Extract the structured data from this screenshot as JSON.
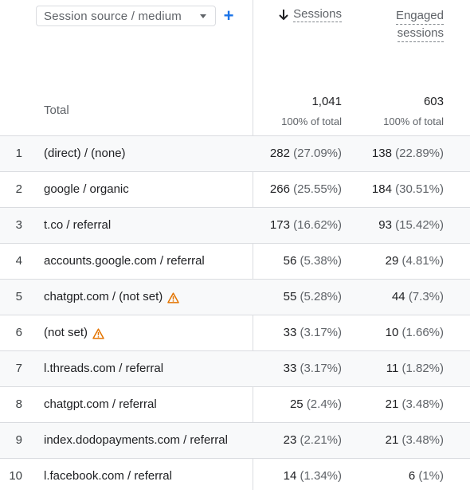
{
  "header": {
    "dimension_selector": "Session source / medium",
    "add_label": "+",
    "sessions_label": "Sessions",
    "engaged_label_line1": "Engaged",
    "engaged_label_line2": "sessions"
  },
  "totals": {
    "label": "Total",
    "sessions": "1,041",
    "sessions_pct": "100% of total",
    "engaged": "603",
    "engaged_pct": "100% of total"
  },
  "rows": [
    {
      "idx": "1",
      "dim": "(direct) / (none)",
      "warn": false,
      "s": "282",
      "sp": "(27.09%)",
      "e": "138",
      "ep": "(22.89%)"
    },
    {
      "idx": "2",
      "dim": "google / organic",
      "warn": false,
      "s": "266",
      "sp": "(25.55%)",
      "e": "184",
      "ep": "(30.51%)"
    },
    {
      "idx": "3",
      "dim": "t.co / referral",
      "warn": false,
      "s": "173",
      "sp": "(16.62%)",
      "e": "93",
      "ep": "(15.42%)"
    },
    {
      "idx": "4",
      "dim": "accounts.google.com / referral",
      "warn": false,
      "s": "56",
      "sp": "(5.38%)",
      "e": "29",
      "ep": "(4.81%)"
    },
    {
      "idx": "5",
      "dim": "chatgpt.com / (not set)",
      "warn": true,
      "s": "55",
      "sp": "(5.28%)",
      "e": "44",
      "ep": "(7.3%)"
    },
    {
      "idx": "6",
      "dim": "(not set)",
      "warn": true,
      "s": "33",
      "sp": "(3.17%)",
      "e": "10",
      "ep": "(1.66%)"
    },
    {
      "idx": "7",
      "dim": "l.threads.com / referral",
      "warn": false,
      "s": "33",
      "sp": "(3.17%)",
      "e": "11",
      "ep": "(1.82%)"
    },
    {
      "idx": "8",
      "dim": "chatgpt.com / referral",
      "warn": false,
      "s": "25",
      "sp": "(2.4%)",
      "e": "21",
      "ep": "(3.48%)"
    },
    {
      "idx": "9",
      "dim": "index.dodopayments.com / referral",
      "warn": false,
      "s": "23",
      "sp": "(2.21%)",
      "e": "21",
      "ep": "(3.48%)"
    },
    {
      "idx": "10",
      "dim": "l.facebook.com / referral",
      "warn": false,
      "s": "14",
      "sp": "(1.34%)",
      "e": "6",
      "ep": "(1%)"
    }
  ],
  "colors": {
    "accent": "#1a73e8",
    "warning": "#e37400",
    "row_shade": "#f8f9fa"
  }
}
